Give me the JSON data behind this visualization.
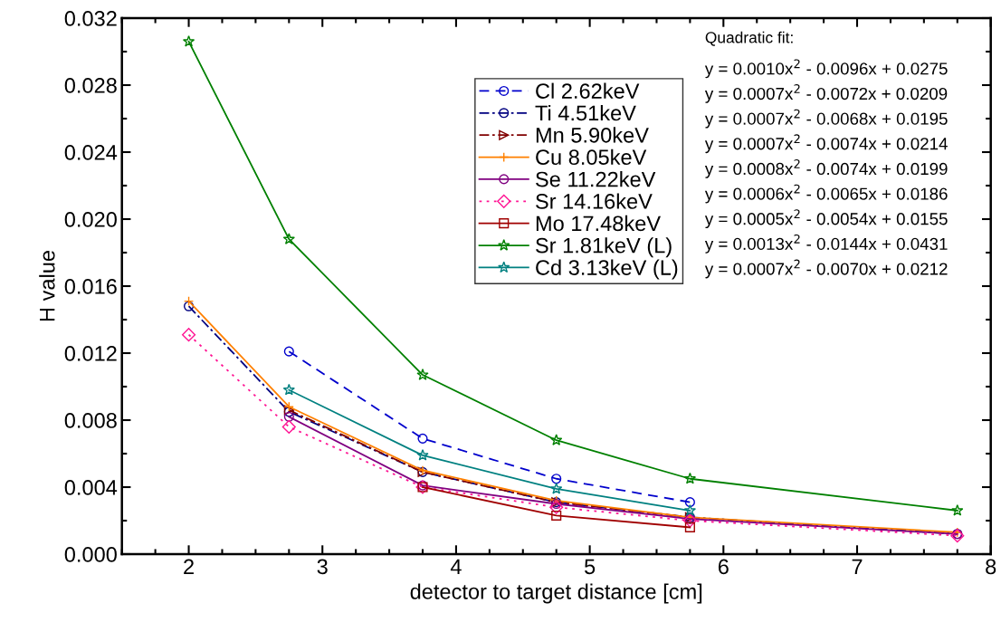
{
  "chart_data": {
    "type": "line",
    "xlabel": "detector to target distance [cm]",
    "ylabel": "H value",
    "xlim": [
      1.5,
      8
    ],
    "xticks": [
      2,
      3,
      4,
      5,
      6,
      7,
      8
    ],
    "ylim": [
      0,
      0.032
    ],
    "yticks": [
      {
        "value": 0,
        "label": "0.000"
      },
      {
        "value": 0.004,
        "label": "0.004"
      },
      {
        "value": 0.008,
        "label": "0.008"
      },
      {
        "value": 0.012,
        "label": "0.012"
      },
      {
        "value": 0.016,
        "label": "0.016"
      },
      {
        "value": 0.02,
        "label": "0.020"
      },
      {
        "value": 0.024,
        "label": "0.024"
      },
      {
        "value": 0.028,
        "label": "0.028"
      },
      {
        "value": 0.032,
        "label": "0.032"
      }
    ],
    "grid": false,
    "legend": "top",
    "series": [
      {
        "name": "Cl 2.62keV",
        "color": "#0000cc",
        "line_style": "dashed",
        "marker": "circle",
        "x": [
          2.75,
          3.75,
          4.75,
          5.75
        ],
        "values": [
          0.0121,
          0.0069,
          0.0045,
          0.0031
        ]
      },
      {
        "name": "Ti 4.51keV",
        "color": "#000080",
        "line_style": "dashdot",
        "marker": "circle",
        "x": [
          2,
          2.75,
          3.75,
          4.75,
          5.75,
          7.75
        ],
        "values": [
          0.0148,
          0.0085,
          0.0049,
          0.0031,
          0.0022,
          0.0012
        ]
      },
      {
        "name": "Mn 5.90keV",
        "color": "#800000",
        "line_style": "dashdot",
        "marker": "triangle",
        "x": [
          2.75,
          3.75,
          4.75,
          5.75
        ],
        "values": [
          0.0086,
          0.0049,
          0.0031,
          0.0022
        ]
      },
      {
        "name": "Cu 8.05keV",
        "color": "#ff8000",
        "line_style": "solid",
        "marker": "cross",
        "x": [
          2,
          2.75,
          3.75,
          4.75,
          5.75,
          7.75
        ],
        "values": [
          0.0151,
          0.0088,
          0.005,
          0.0032,
          0.0022,
          0.0013
        ]
      },
      {
        "name": "Se 11.22keV",
        "color": "#800080",
        "line_style": "solid",
        "marker": "circle",
        "x": [
          2.75,
          3.75,
          4.75,
          5.75,
          7.75
        ],
        "values": [
          0.0082,
          0.0041,
          0.003,
          0.0021,
          0.0012
        ]
      },
      {
        "name": "Sr 14.16keV",
        "color": "#ff1493",
        "line_style": "dotted",
        "marker": "diamond",
        "x": [
          2,
          2.75,
          3.75,
          4.75,
          5.75,
          7.75
        ],
        "values": [
          0.0131,
          0.0076,
          0.004,
          0.0028,
          0.002,
          0.0011
        ]
      },
      {
        "name": "Mo 17.48keV",
        "color": "#a00000",
        "line_style": "solid",
        "marker": "square",
        "x": [
          3.75,
          4.75,
          5.75
        ],
        "values": [
          0.004,
          0.0023,
          0.0016
        ]
      },
      {
        "name": "Sr 1.81keV (L)",
        "color": "#008000",
        "line_style": "solid",
        "marker": "star",
        "x": [
          2,
          2.75,
          3.75,
          4.75,
          5.75,
          7.75
        ],
        "values": [
          0.0306,
          0.0188,
          0.0107,
          0.0068,
          0.0045,
          0.0026
        ]
      },
      {
        "name": "Cd 3.13keV (L)",
        "color": "#008080",
        "line_style": "solid",
        "marker": "star",
        "x": [
          2.75,
          3.75,
          4.75,
          5.75
        ],
        "values": [
          0.0098,
          0.0059,
          0.0039,
          0.0026
        ]
      }
    ],
    "annotations": [
      "Quadratic fit:",
      "y = 0.0010x$^{2}$ - 0.0096x + 0.0275",
      "y = 0.0007x$^{2}$ - 0.0072x + 0.0209",
      "y = 0.0007x$^{2}$ - 0.0068x + 0.0195",
      "y = 0.0007x$^{2}$ - 0.0074x + 0.0214",
      "y = 0.0008x$^{2}$ - 0.0074x + 0.0199",
      "y = 0.0006x$^{2}$ - 0.0065x + 0.0186",
      "y = 0.0005x$^{2}$ - 0.0054x + 0.0155",
      "y = 0.0013x$^{2}$ - 0.0144x + 0.0431",
      "y = 0.0007x$^{2}$ - 0.0070x + 0.0212"
    ]
  }
}
